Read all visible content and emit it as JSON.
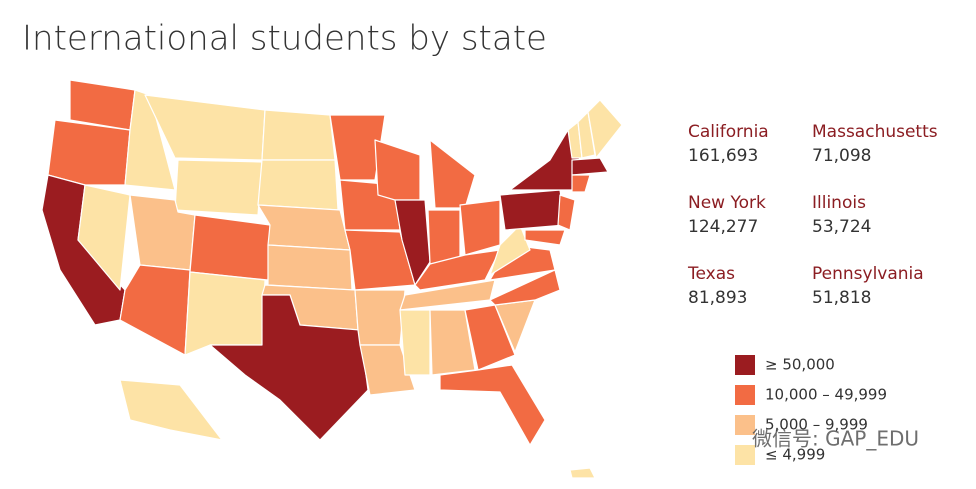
{
  "header": {
    "title": "International students by state"
  },
  "callouts": [
    {
      "state": "California",
      "value": "161,693"
    },
    {
      "state": "Massachusetts",
      "value": "71,098"
    },
    {
      "state": "New York",
      "value": "124,277"
    },
    {
      "state": "Illinois",
      "value": "53,724"
    },
    {
      "state": "Texas",
      "value": "81,893"
    },
    {
      "state": "Pennsylvania",
      "value": "51,818"
    }
  ],
  "legend": [
    {
      "label": "≥ 50,000",
      "color": "#9b1c20"
    },
    {
      "label": "10,000 – 49,999",
      "color": "#f26b43"
    },
    {
      "label": "5,000 – 9,999",
      "color": "#fbc08a"
    },
    {
      "label": "≤ 4,999",
      "color": "#fde3a6"
    }
  ],
  "watermark": "微信号: GAP_EDU"
}
